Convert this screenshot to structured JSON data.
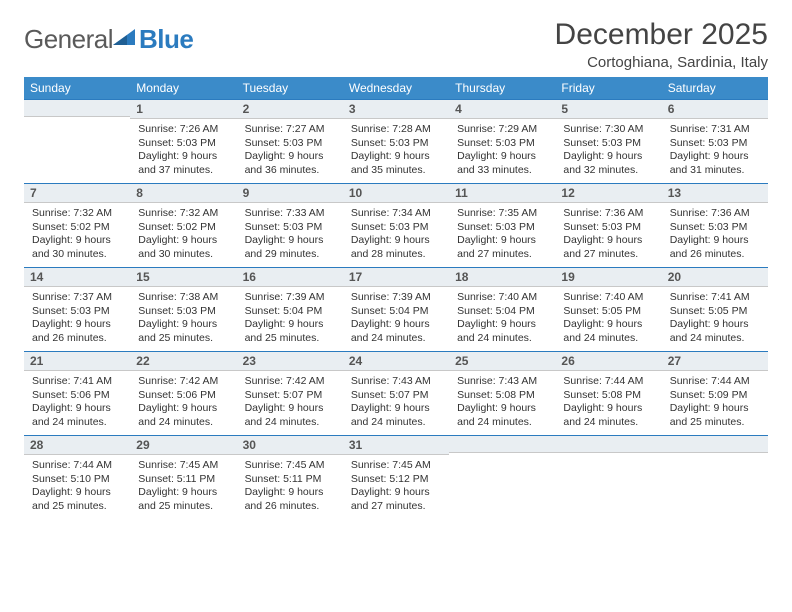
{
  "brand": {
    "name1": "General",
    "name2": "Blue"
  },
  "title": "December 2025",
  "location": "Cortoghiana, Sardinia, Italy",
  "colors": {
    "header_bg": "#3b8bc9",
    "header_text": "#ffffff",
    "dayhead_bg": "#e9eef2",
    "dayhead_border_top": "#2b7bbf",
    "logo_blue": "#2b7bbf"
  },
  "weekdays": [
    "Sunday",
    "Monday",
    "Tuesday",
    "Wednesday",
    "Thursday",
    "Friday",
    "Saturday"
  ],
  "weeks": [
    [
      null,
      {
        "d": "1",
        "sr": "7:26 AM",
        "ss": "5:03 PM",
        "dl": "9 hours",
        "dm": "and 37 minutes."
      },
      {
        "d": "2",
        "sr": "7:27 AM",
        "ss": "5:03 PM",
        "dl": "9 hours",
        "dm": "and 36 minutes."
      },
      {
        "d": "3",
        "sr": "7:28 AM",
        "ss": "5:03 PM",
        "dl": "9 hours",
        "dm": "and 35 minutes."
      },
      {
        "d": "4",
        "sr": "7:29 AM",
        "ss": "5:03 PM",
        "dl": "9 hours",
        "dm": "and 33 minutes."
      },
      {
        "d": "5",
        "sr": "7:30 AM",
        "ss": "5:03 PM",
        "dl": "9 hours",
        "dm": "and 32 minutes."
      },
      {
        "d": "6",
        "sr": "7:31 AM",
        "ss": "5:03 PM",
        "dl": "9 hours",
        "dm": "and 31 minutes."
      }
    ],
    [
      {
        "d": "7",
        "sr": "7:32 AM",
        "ss": "5:02 PM",
        "dl": "9 hours",
        "dm": "and 30 minutes."
      },
      {
        "d": "8",
        "sr": "7:32 AM",
        "ss": "5:02 PM",
        "dl": "9 hours",
        "dm": "and 30 minutes."
      },
      {
        "d": "9",
        "sr": "7:33 AM",
        "ss": "5:03 PM",
        "dl": "9 hours",
        "dm": "and 29 minutes."
      },
      {
        "d": "10",
        "sr": "7:34 AM",
        "ss": "5:03 PM",
        "dl": "9 hours",
        "dm": "and 28 minutes."
      },
      {
        "d": "11",
        "sr": "7:35 AM",
        "ss": "5:03 PM",
        "dl": "9 hours",
        "dm": "and 27 minutes."
      },
      {
        "d": "12",
        "sr": "7:36 AM",
        "ss": "5:03 PM",
        "dl": "9 hours",
        "dm": "and 27 minutes."
      },
      {
        "d": "13",
        "sr": "7:36 AM",
        "ss": "5:03 PM",
        "dl": "9 hours",
        "dm": "and 26 minutes."
      }
    ],
    [
      {
        "d": "14",
        "sr": "7:37 AM",
        "ss": "5:03 PM",
        "dl": "9 hours",
        "dm": "and 26 minutes."
      },
      {
        "d": "15",
        "sr": "7:38 AM",
        "ss": "5:03 PM",
        "dl": "9 hours",
        "dm": "and 25 minutes."
      },
      {
        "d": "16",
        "sr": "7:39 AM",
        "ss": "5:04 PM",
        "dl": "9 hours",
        "dm": "and 25 minutes."
      },
      {
        "d": "17",
        "sr": "7:39 AM",
        "ss": "5:04 PM",
        "dl": "9 hours",
        "dm": "and 24 minutes."
      },
      {
        "d": "18",
        "sr": "7:40 AM",
        "ss": "5:04 PM",
        "dl": "9 hours",
        "dm": "and 24 minutes."
      },
      {
        "d": "19",
        "sr": "7:40 AM",
        "ss": "5:05 PM",
        "dl": "9 hours",
        "dm": "and 24 minutes."
      },
      {
        "d": "20",
        "sr": "7:41 AM",
        "ss": "5:05 PM",
        "dl": "9 hours",
        "dm": "and 24 minutes."
      }
    ],
    [
      {
        "d": "21",
        "sr": "7:41 AM",
        "ss": "5:06 PM",
        "dl": "9 hours",
        "dm": "and 24 minutes."
      },
      {
        "d": "22",
        "sr": "7:42 AM",
        "ss": "5:06 PM",
        "dl": "9 hours",
        "dm": "and 24 minutes."
      },
      {
        "d": "23",
        "sr": "7:42 AM",
        "ss": "5:07 PM",
        "dl": "9 hours",
        "dm": "and 24 minutes."
      },
      {
        "d": "24",
        "sr": "7:43 AM",
        "ss": "5:07 PM",
        "dl": "9 hours",
        "dm": "and 24 minutes."
      },
      {
        "d": "25",
        "sr": "7:43 AM",
        "ss": "5:08 PM",
        "dl": "9 hours",
        "dm": "and 24 minutes."
      },
      {
        "d": "26",
        "sr": "7:44 AM",
        "ss": "5:08 PM",
        "dl": "9 hours",
        "dm": "and 24 minutes."
      },
      {
        "d": "27",
        "sr": "7:44 AM",
        "ss": "5:09 PM",
        "dl": "9 hours",
        "dm": "and 25 minutes."
      }
    ],
    [
      {
        "d": "28",
        "sr": "7:44 AM",
        "ss": "5:10 PM",
        "dl": "9 hours",
        "dm": "and 25 minutes."
      },
      {
        "d": "29",
        "sr": "7:45 AM",
        "ss": "5:11 PM",
        "dl": "9 hours",
        "dm": "and 25 minutes."
      },
      {
        "d": "30",
        "sr": "7:45 AM",
        "ss": "5:11 PM",
        "dl": "9 hours",
        "dm": "and 26 minutes."
      },
      {
        "d": "31",
        "sr": "7:45 AM",
        "ss": "5:12 PM",
        "dl": "9 hours",
        "dm": "and 27 minutes."
      },
      null,
      null,
      null
    ]
  ],
  "labels": {
    "sunrise": "Sunrise:",
    "sunset": "Sunset:",
    "daylight": "Daylight:"
  }
}
